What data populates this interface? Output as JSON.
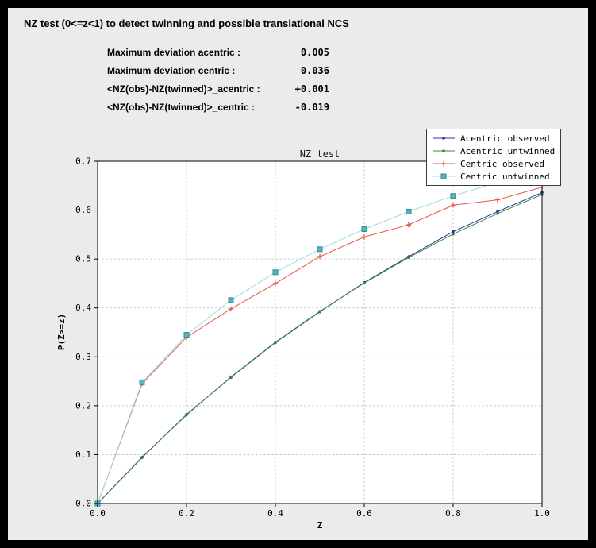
{
  "window": {
    "title": "NZ test (0<=z<1) to detect twinning and possible translational NCS"
  },
  "stats": {
    "rows": [
      {
        "label": "Maximum deviation acentric :",
        "value": "0.005"
      },
      {
        "label": "Maximum deviation centric :",
        "value": "0.036"
      },
      {
        "label": "<NZ(obs)-NZ(twinned)>_acentric :",
        "value": "+0.001"
      },
      {
        "label": "<NZ(obs)-NZ(twinned)>_centric :",
        "value": "-0.019"
      }
    ]
  },
  "chart_data": {
    "type": "line",
    "title": "NZ test",
    "xlabel": "Z",
    "ylabel": "P(Z>=z)",
    "xlim": [
      0.0,
      1.0
    ],
    "ylim": [
      0.0,
      0.7
    ],
    "x_ticks": [
      0.0,
      0.2,
      0.4,
      0.6,
      0.8,
      1.0
    ],
    "y_ticks": [
      0.0,
      0.1,
      0.2,
      0.3,
      0.4,
      0.5,
      0.6,
      0.7
    ],
    "grid": true,
    "legend_position": "upper right",
    "plot_bg": "#ffffff",
    "x": [
      0.0,
      0.1,
      0.2,
      0.3,
      0.4,
      0.5,
      0.6,
      0.7,
      0.8,
      0.9,
      1.0
    ],
    "series": [
      {
        "name": "Acentric observed",
        "color": "#2733a2",
        "marker": "dot",
        "values": [
          0.0,
          0.094,
          0.182,
          0.258,
          0.329,
          0.392,
          0.452,
          0.505,
          0.556,
          0.597,
          0.636
        ]
      },
      {
        "name": "Acentric untwinned",
        "color": "#3d8a3d",
        "marker": "dot",
        "values": [
          0.0,
          0.095,
          0.181,
          0.259,
          0.33,
          0.393,
          0.451,
          0.503,
          0.551,
          0.593,
          0.632
        ]
      },
      {
        "name": "Centric observed",
        "color": "#e8564a",
        "marker": "plus",
        "values": [
          0.0,
          0.245,
          0.34,
          0.398,
          0.45,
          0.505,
          0.545,
          0.57,
          0.61,
          0.621,
          0.647
        ]
      },
      {
        "name": "Centric untwinned",
        "color": "#9bdce0",
        "marker": "square",
        "marker_fill": "#56b6be",
        "marker_edge": "#2e8a93",
        "values": [
          0.0,
          0.248,
          0.345,
          0.416,
          0.473,
          0.52,
          0.561,
          0.597,
          0.629,
          0.657,
          0.683
        ]
      }
    ]
  }
}
